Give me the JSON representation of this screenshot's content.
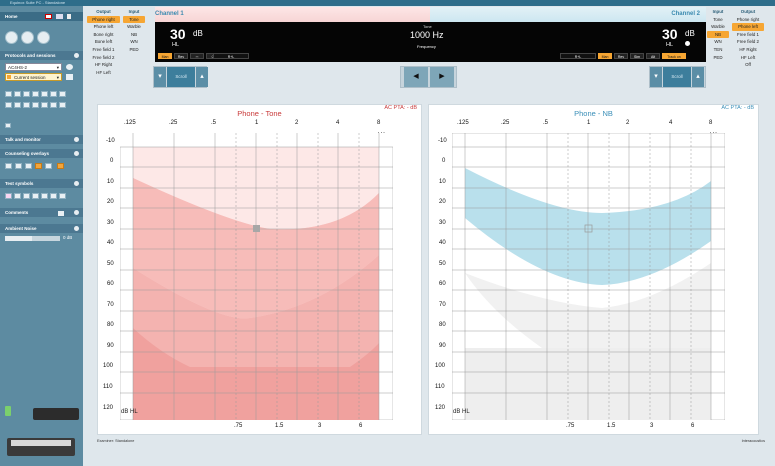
{
  "app": {
    "title": "Equinox Suite PC - Standalone"
  },
  "sidebar": {
    "home_label": "Home",
    "protocols_header": "Protocols and sessions",
    "protocol_select": "AC4HS-2",
    "session_select": "Current session",
    "talk_header": "Talk and monitor",
    "counseling_header": "Counseling overlays",
    "symbols_header": "Test symbols",
    "comments_header": "Comments",
    "ambient_header": "Ambient Noise",
    "ambient_value": "0 dB"
  },
  "channel1": {
    "title": "Channel 1",
    "output_header": "Output",
    "input_header": "Input",
    "outputs": [
      "Phone right",
      "Phone left",
      "Bone right",
      "Bone left",
      "Free field 1",
      "Free field 2",
      "HF Right",
      "HF Left"
    ],
    "inputs": [
      "Tone",
      "Warble",
      "NB",
      "WN",
      "PED"
    ],
    "level": "30",
    "level_unit": "dB",
    "level_scale": "HL",
    "scroll_label": "Scroll",
    "buttons": [
      "Man",
      "Rev",
      "⎓",
      "⎔",
      "⎕⎓",
      "R+L"
    ]
  },
  "center": {
    "tone_label": "Tone",
    "frequency_value": "1000 Hz",
    "frequency_label": "Frequency"
  },
  "channel2": {
    "title": "Channel 2",
    "output_header": "Output",
    "input_header": "Input",
    "inputs": [
      "Tone",
      "Warble",
      "NB",
      "WN",
      "TEN",
      "PED"
    ],
    "outputs": [
      "Phone right",
      "Phone left",
      "Free field 1",
      "Free field 2",
      "HF Right",
      "HF Left",
      "Off"
    ],
    "level": "30",
    "level_unit": "dB",
    "level_scale": "HL",
    "scroll_label": "Scroll",
    "buttons": [
      "R+L",
      "Man",
      "Rev",
      "Sim",
      "Alt",
      "Track on"
    ]
  },
  "left_chart": {
    "title": "Phone - Tone",
    "pta_label": "AC PTA:",
    "pta_value": "- dB",
    "unit_label": "kHz",
    "db_label": "dB HL",
    "top_ticks": [
      ".125",
      ".25",
      ".5",
      "1",
      "2",
      "4",
      "8"
    ],
    "bottom_ticks": [
      ".75",
      "1.5",
      "3",
      "6"
    ],
    "y_ticks": [
      "-10",
      "0",
      "10",
      "20",
      "30",
      "40",
      "50",
      "60",
      "70",
      "80",
      "90",
      "100",
      "110",
      "120"
    ]
  },
  "right_chart": {
    "title": "Phone - NB",
    "pta_label": "AC PTA:",
    "pta_value": "- dB",
    "unit_label": "kHz",
    "db_label": "dB HL",
    "top_ticks": [
      ".125",
      ".25",
      ".5",
      "1",
      "2",
      "4",
      "8"
    ],
    "bottom_ticks": [
      ".75",
      "1.5",
      "3",
      "6"
    ],
    "y_ticks": [
      "-10",
      "0",
      "10",
      "20",
      "30",
      "40",
      "50",
      "60",
      "70",
      "80",
      "90",
      "100",
      "110",
      "120"
    ]
  },
  "status": {
    "examiner": "Examiner: Standalone",
    "brand": "Interacoustics"
  },
  "colors": {
    "accent_orange": "#f6a633",
    "left_band": "#f1a7a4",
    "right_band": "#b9e0ec",
    "sidebar": "#5d8ba1"
  }
}
